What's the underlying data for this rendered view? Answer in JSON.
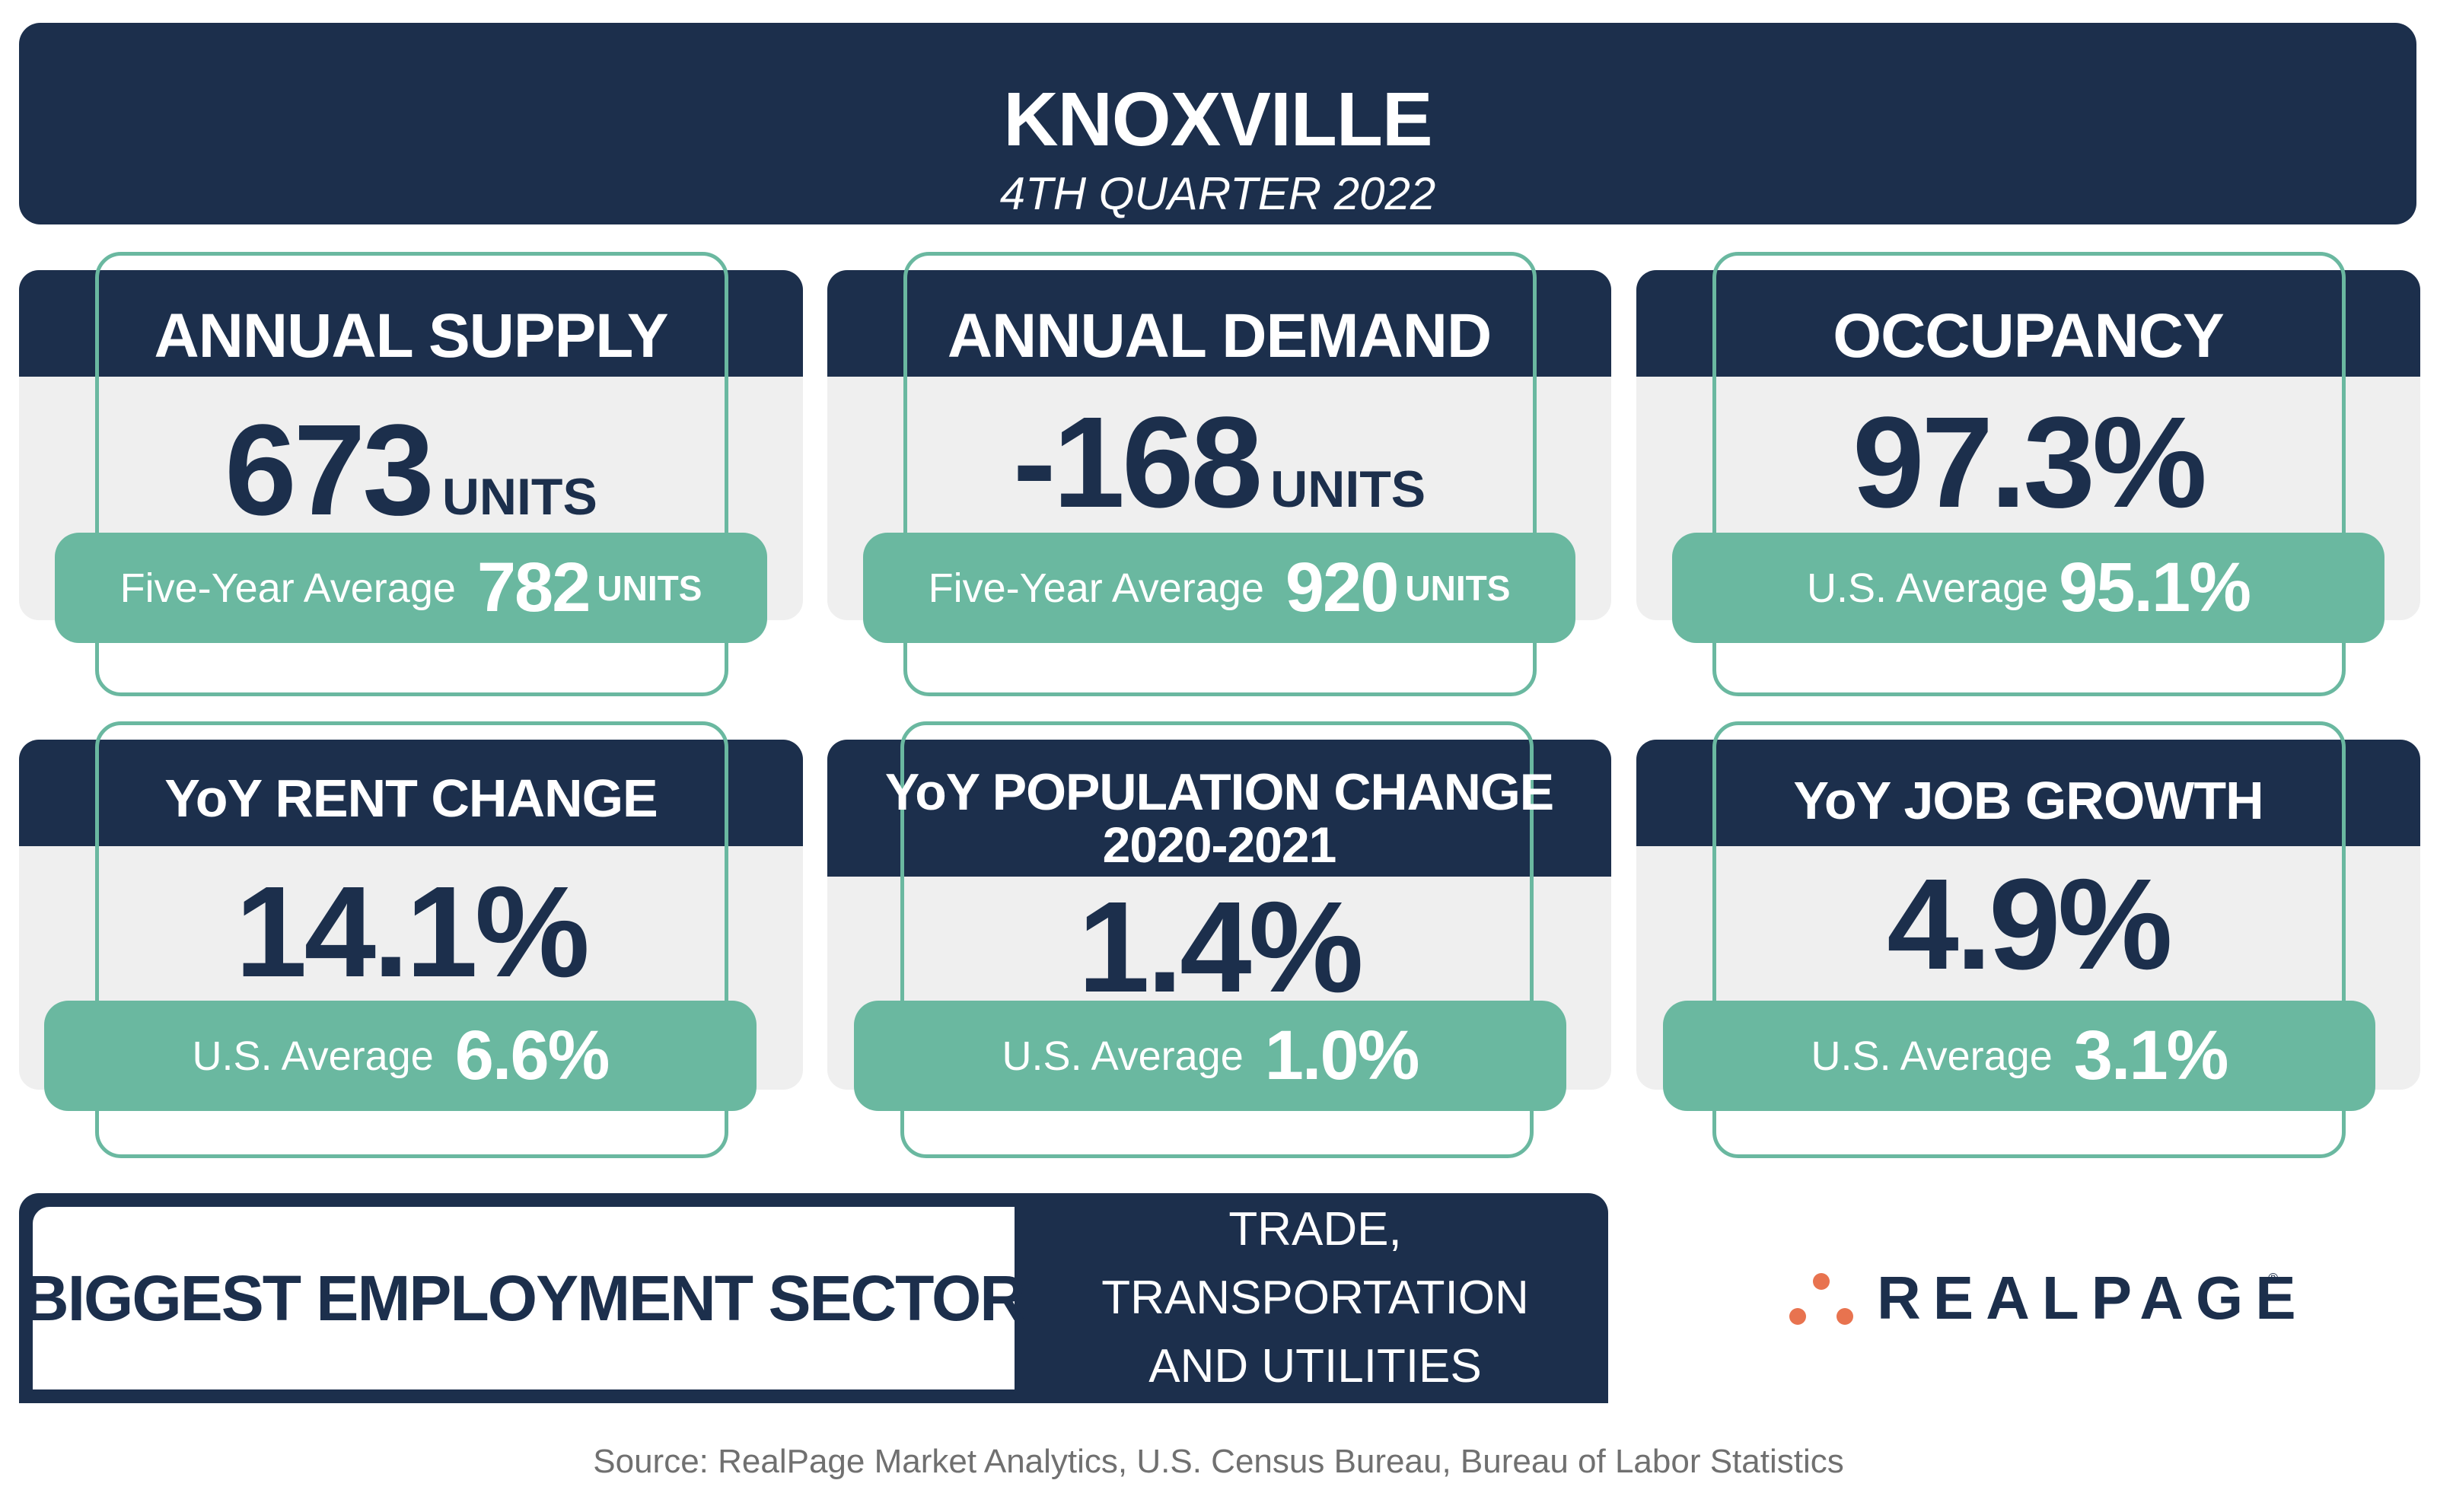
{
  "header": {
    "city": "KNOXVILLE",
    "quarter": "4TH QUARTER 2022"
  },
  "cards": [
    {
      "title": "ANNUAL SUPPLY",
      "value": "673",
      "unit": "UNITS",
      "compare_label": "Five-Year Average",
      "compare_value": "782",
      "compare_unit": "UNITS"
    },
    {
      "title": "ANNUAL DEMAND",
      "value": "-168",
      "unit": "UNITS",
      "compare_label": "Five-Year Average",
      "compare_value": "920",
      "compare_unit": "UNITS"
    },
    {
      "title": "OCCUPANCY",
      "value": "97.3%",
      "unit": "",
      "compare_label": "U.S. Average",
      "compare_value": "95.1%",
      "compare_unit": ""
    },
    {
      "title": "YoY RENT CHANGE",
      "value": "14.1%",
      "unit": "",
      "compare_label": "U.S. Average",
      "compare_value": "6.6%",
      "compare_unit": ""
    },
    {
      "title": "YoY POPULATION CHANGE",
      "subtitle": "2020-2021",
      "value": "1.4%",
      "unit": "",
      "compare_label": "U.S. Average",
      "compare_value": "1.0%",
      "compare_unit": ""
    },
    {
      "title": "YoY JOB GROWTH",
      "value": "4.9%",
      "unit": "",
      "compare_label": "U.S. Average",
      "compare_value": "3.1%",
      "compare_unit": ""
    }
  ],
  "sector": {
    "label": "BIGGEST EMPLOYMENT SECTOR",
    "value_line1": "TRADE, TRANSPORTATION",
    "value_line2": "AND UTILITIES"
  },
  "logo": {
    "text": "REALPAGE",
    "registered": "®",
    "dot_color": "#e8734f"
  },
  "source": "Source: RealPage Market Analytics, U.S. Census Bureau, Bureau of Labor Statistics",
  "colors": {
    "navy": "#1c2f4c",
    "teal": "#6ab8a0",
    "panel_gray": "#efefef"
  }
}
